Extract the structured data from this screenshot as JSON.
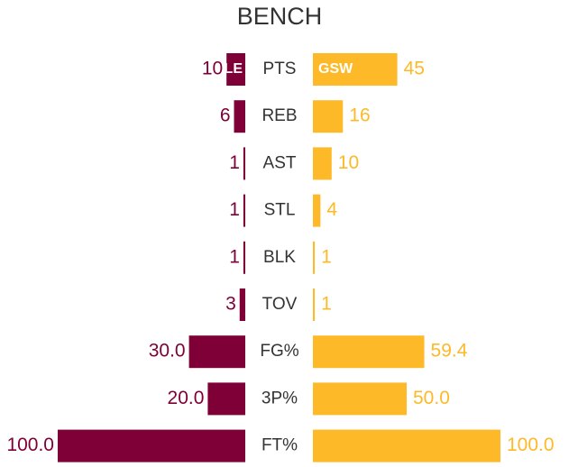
{
  "chart_data": {
    "type": "butterfly",
    "title": "BENCH",
    "categories": [
      "PTS",
      "REB",
      "AST",
      "STL",
      "BLK",
      "TOV",
      "FG%",
      "3P%",
      "FT%"
    ],
    "xlim": [
      0,
      100
    ],
    "series": [
      {
        "name": "CLE",
        "color": "#7f0037",
        "values": [
          10,
          6,
          1,
          1,
          1,
          3,
          30,
          20,
          100
        ],
        "value_labels": [
          "10",
          "6",
          "1",
          "1",
          "1",
          "3",
          "30.0",
          "20.0",
          "100.0"
        ]
      },
      {
        "name": "GSW",
        "color": "#fdb927",
        "values": [
          45,
          16,
          10,
          4,
          1,
          1,
          59.4,
          50,
          100
        ],
        "value_labels": [
          "45",
          "16",
          "10",
          "4",
          "1",
          "1",
          "59.4",
          "50.0",
          "100.0"
        ]
      }
    ]
  }
}
